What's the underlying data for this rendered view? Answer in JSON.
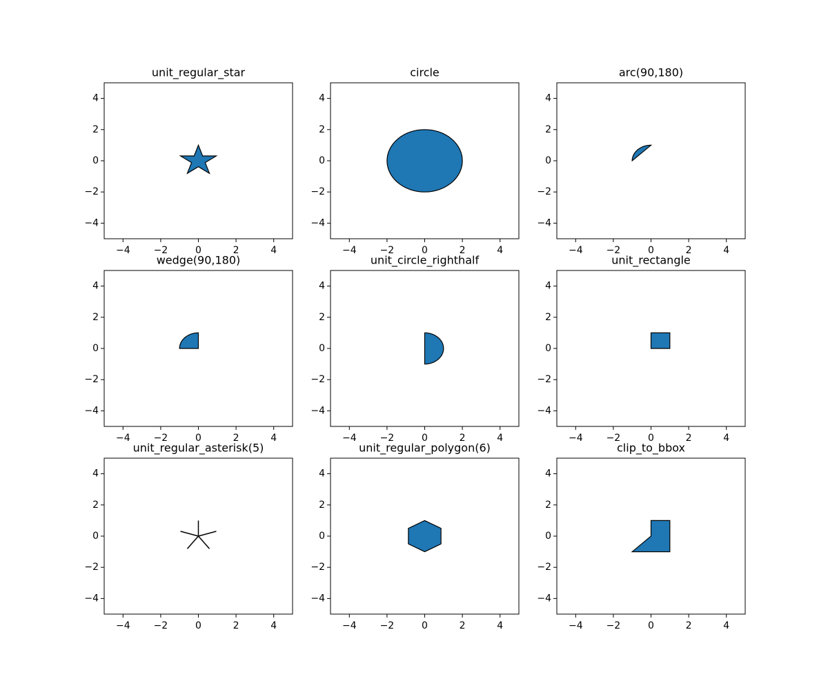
{
  "chart_data": [
    {
      "type": "polygon",
      "title": "unit_regular_star",
      "color": "#1f77b4",
      "x": [
        0,
        -0.225,
        -0.951,
        -0.363,
        -0.588,
        0,
        0.588,
        0.363,
        0.951,
        0.225
      ],
      "y": [
        1,
        0.309,
        0.309,
        -0.118,
        -0.809,
        -0.382,
        -0.809,
        -0.118,
        0.309,
        0.309
      ],
      "xlim": [
        -5,
        5
      ],
      "ylim": [
        -5,
        5
      ],
      "xticks": [
        {
          "value": -4,
          "label": "−4"
        },
        {
          "value": -2,
          "label": "−2"
        },
        0,
        2,
        4
      ],
      "yticks": [
        {
          "value": -4,
          "label": "−4"
        },
        {
          "value": -2,
          "label": "−2"
        },
        0,
        2,
        4
      ]
    },
    {
      "type": "circle",
      "title": "circle",
      "color": "#1f77b4",
      "x": [
        0
      ],
      "y": [
        0
      ],
      "r": 2,
      "xlim": [
        -5,
        5
      ],
      "ylim": [
        -5,
        5
      ],
      "xticks": [
        {
          "value": -4,
          "label": "−4"
        },
        {
          "value": -2,
          "label": "−2"
        },
        0,
        2,
        4
      ],
      "yticks": [
        {
          "value": -4,
          "label": "−4"
        },
        {
          "value": -2,
          "label": "−2"
        },
        0,
        2,
        4
      ]
    },
    {
      "type": "arc",
      "title": "arc(90,180)",
      "color": "#1f77b4",
      "theta1": 90,
      "theta2": 180,
      "r": 1,
      "xlim": [
        -5,
        5
      ],
      "ylim": [
        -5,
        5
      ],
      "xticks": [
        {
          "value": -4,
          "label": "−4"
        },
        {
          "value": -2,
          "label": "−2"
        },
        0,
        2,
        4
      ],
      "yticks": [
        {
          "value": -4,
          "label": "−4"
        },
        {
          "value": -2,
          "label": "−2"
        },
        0,
        2,
        4
      ]
    },
    {
      "type": "wedge",
      "title": "wedge(90,180)",
      "color": "#1f77b4",
      "theta1": 90,
      "theta2": 180,
      "r": 1,
      "xlim": [
        -5,
        5
      ],
      "ylim": [
        -5,
        5
      ],
      "xticks": [
        {
          "value": -4,
          "label": "−4"
        },
        {
          "value": -2,
          "label": "−2"
        },
        0,
        2,
        4
      ],
      "yticks": [
        {
          "value": -4,
          "label": "−4"
        },
        {
          "value": -2,
          "label": "−2"
        },
        0,
        2,
        4
      ]
    },
    {
      "type": "arc",
      "title": "unit_circle_righthalf",
      "color": "#1f77b4",
      "theta1": -90,
      "theta2": 90,
      "r": 1,
      "xlim": [
        -5,
        5
      ],
      "ylim": [
        -5,
        5
      ],
      "xticks": [
        {
          "value": -4,
          "label": "−4"
        },
        {
          "value": -2,
          "label": "−2"
        },
        0,
        2,
        4
      ],
      "yticks": [
        {
          "value": -4,
          "label": "−4"
        },
        {
          "value": -2,
          "label": "−2"
        },
        0,
        2,
        4
      ]
    },
    {
      "type": "polygon",
      "title": "unit_rectangle",
      "color": "#1f77b4",
      "x": [
        0,
        1,
        1,
        0
      ],
      "y": [
        0,
        0,
        1,
        1
      ],
      "xlim": [
        -5,
        5
      ],
      "ylim": [
        -5,
        5
      ],
      "xticks": [
        {
          "value": -4,
          "label": "−4"
        },
        {
          "value": -2,
          "label": "−2"
        },
        0,
        2,
        4
      ],
      "yticks": [
        {
          "value": -4,
          "label": "−4"
        },
        {
          "value": -2,
          "label": "−2"
        },
        0,
        2,
        4
      ]
    },
    {
      "type": "asterisk",
      "title": "unit_regular_asterisk(5)",
      "color": "#000000",
      "x": [
        0,
        -0.951,
        -0.588,
        0.588,
        0.951
      ],
      "y": [
        1,
        0.309,
        -0.809,
        -0.809,
        0.309
      ],
      "xlim": [
        -5,
        5
      ],
      "ylim": [
        -5,
        5
      ],
      "xticks": [
        {
          "value": -4,
          "label": "−4"
        },
        {
          "value": -2,
          "label": "−2"
        },
        0,
        2,
        4
      ],
      "yticks": [
        {
          "value": -4,
          "label": "−4"
        },
        {
          "value": -2,
          "label": "−2"
        },
        0,
        2,
        4
      ]
    },
    {
      "type": "polygon",
      "title": "unit_regular_polygon(6)",
      "color": "#1f77b4",
      "x": [
        0,
        -0.866,
        -0.866,
        0,
        0.866,
        0.866
      ],
      "y": [
        1,
        0.5,
        -0.5,
        -1,
        -0.5,
        0.5
      ],
      "xlim": [
        -5,
        5
      ],
      "ylim": [
        -5,
        5
      ],
      "xticks": [
        {
          "value": -4,
          "label": "−4"
        },
        {
          "value": -2,
          "label": "−2"
        },
        0,
        2,
        4
      ],
      "yticks": [
        {
          "value": -4,
          "label": "−4"
        },
        {
          "value": -2,
          "label": "−2"
        },
        0,
        2,
        4
      ]
    },
    {
      "type": "polygon",
      "title": "clip_to_bbox",
      "color": "#1f77b4",
      "x": [
        0,
        1,
        1,
        -1,
        0
      ],
      "y": [
        1,
        1,
        -1,
        -1,
        0
      ],
      "xlim": [
        -5,
        5
      ],
      "ylim": [
        -5,
        5
      ],
      "xticks": [
        {
          "value": -4,
          "label": "−4"
        },
        {
          "value": -2,
          "label": "−2"
        },
        0,
        2,
        4
      ],
      "yticks": [
        {
          "value": -4,
          "label": "−4"
        },
        {
          "value": -2,
          "label": "−2"
        },
        0,
        2,
        4
      ]
    }
  ]
}
